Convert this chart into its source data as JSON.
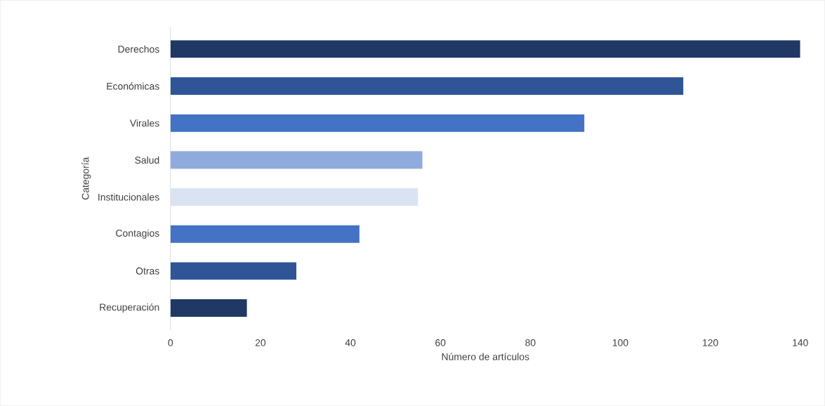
{
  "chart_data": {
    "type": "bar",
    "orientation": "horizontal",
    "xlabel": "Número de artículos",
    "ylabel": "Categoría",
    "categories": [
      "Derechos",
      "Económicas",
      "Virales",
      "Salud",
      "Institucionales",
      "Contagios",
      "Otras",
      "Recuperación"
    ],
    "values": [
      140,
      114,
      92,
      56,
      55,
      42,
      28,
      17
    ],
    "colors": [
      "#203864",
      "#2f5597",
      "#4472c4",
      "#8faadc",
      "#dae3f3",
      "#4472c4",
      "#2f5597",
      "#203864"
    ],
    "xlim": [
      0,
      140
    ],
    "xticks": [
      0,
      20,
      40,
      60,
      80,
      100,
      120,
      140
    ]
  }
}
